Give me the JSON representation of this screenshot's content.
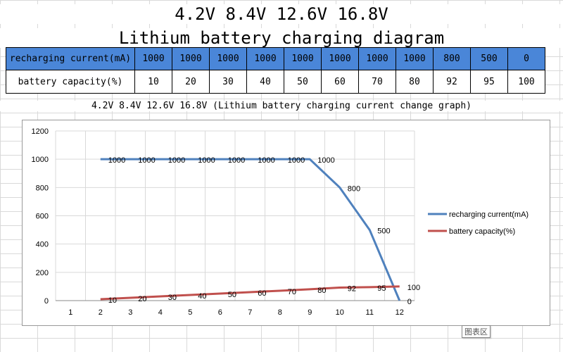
{
  "header": {
    "title_line1": "4.2V 8.4V 12.6V 16.8V",
    "title_line2": "Lithium battery charging diagram"
  },
  "table": {
    "rows": [
      {
        "label": "recharging current(mA)",
        "values": [
          "1000",
          "1000",
          "1000",
          "1000",
          "1000",
          "1000",
          "1000",
          "1000",
          "800",
          "500",
          "0"
        ]
      },
      {
        "label": "battery capacity(%)",
        "values": [
          "10",
          "20",
          "30",
          "40",
          "50",
          "60",
          "70",
          "80",
          "92",
          "95",
          "100"
        ]
      }
    ]
  },
  "tooltip": {
    "text": "图表区"
  },
  "colors": {
    "header_row": "#4a86d8",
    "series_current": "#4f81bd",
    "series_capacity": "#c0504d"
  },
  "chart_data": {
    "type": "line",
    "title": "4.2V 8.4V 12.6V 16.8V (Lithium battery charging current change graph)",
    "categories": [
      1,
      2,
      3,
      4,
      5,
      6,
      7,
      8,
      9,
      10,
      11,
      12
    ],
    "x": [
      2,
      3,
      4,
      5,
      6,
      7,
      8,
      9,
      10,
      11,
      12
    ],
    "series": [
      {
        "name": "recharging current(mA)",
        "values": [
          1000,
          1000,
          1000,
          1000,
          1000,
          1000,
          1000,
          1000,
          800,
          500,
          0
        ]
      },
      {
        "name": "battery capacity(%)",
        "values": [
          10,
          20,
          30,
          40,
          50,
          60,
          70,
          80,
          92,
          95,
          100
        ]
      }
    ],
    "ylim": [
      0,
      1200
    ],
    "yticks": [
      0,
      200,
      400,
      600,
      800,
      1000,
      1200
    ],
    "grid": true,
    "legend": "right"
  }
}
